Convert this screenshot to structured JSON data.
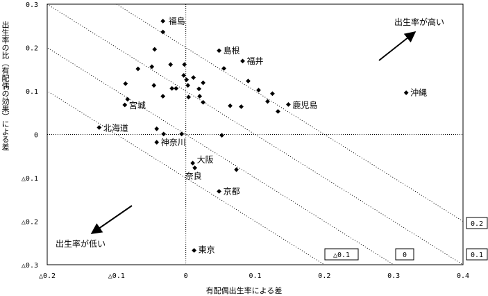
{
  "chart_data": {
    "type": "scatter",
    "xlabel": "有配偶出生率による差",
    "ylabel": "出生率の比（有配偶の効果）による差",
    "xlim": [
      -0.2,
      0.4
    ],
    "ylim": [
      -0.3,
      0.3
    ],
    "x_ticks": [
      {
        "value": -0.2,
        "label": "△0.2"
      },
      {
        "value": -0.1,
        "label": "△0.1"
      },
      {
        "value": 0,
        "label": "0"
      },
      {
        "value": 0.1,
        "label": "0.1"
      },
      {
        "value": 0.2,
        "label": "0.2"
      },
      {
        "value": 0.3,
        "label": "0.3"
      },
      {
        "value": 0.4,
        "label": "0.4"
      }
    ],
    "y_ticks": [
      {
        "value": 0.3,
        "label": "0.3"
      },
      {
        "value": 0.2,
        "label": "0.2"
      },
      {
        "value": 0.1,
        "label": "0.1"
      },
      {
        "value": 0,
        "label": "0"
      },
      {
        "value": -0.1,
        "label": "△0.1"
      },
      {
        "value": -0.2,
        "label": "△0.2"
      },
      {
        "value": -0.3,
        "label": "△0.3"
      }
    ],
    "reference_lines": [
      {
        "sum": 0.2,
        "label": "0.2"
      },
      {
        "sum": 0.1,
        "label": "0.1"
      },
      {
        "sum": 0,
        "label": "0"
      },
      {
        "sum": -0.1,
        "label": "△0.1"
      }
    ],
    "annotations": {
      "high": "出生率が高い",
      "low": "出生率が低い"
    },
    "points": [
      {
        "x": -0.033,
        "y": 0.261,
        "label": "福島"
      },
      {
        "x": -0.033,
        "y": 0.236,
        "label": ""
      },
      {
        "x": -0.045,
        "y": 0.196,
        "label": ""
      },
      {
        "x": 0.048,
        "y": 0.193,
        "label": "島根"
      },
      {
        "x": 0.082,
        "y": 0.169,
        "label": "福井"
      },
      {
        "x": -0.022,
        "y": 0.161,
        "label": ""
      },
      {
        "x": -0.002,
        "y": 0.161,
        "label": ""
      },
      {
        "x": 0.055,
        "y": 0.152,
        "label": ""
      },
      {
        "x": -0.069,
        "y": 0.151,
        "label": ""
      },
      {
        "x": -0.049,
        "y": 0.156,
        "label": ""
      },
      {
        "x": -0.003,
        "y": 0.136,
        "label": ""
      },
      {
        "x": 0.011,
        "y": 0.131,
        "label": ""
      },
      {
        "x": 0.001,
        "y": 0.126,
        "label": ""
      },
      {
        "x": 0.025,
        "y": 0.119,
        "label": ""
      },
      {
        "x": 0.09,
        "y": 0.123,
        "label": ""
      },
      {
        "x": -0.087,
        "y": 0.117,
        "label": ""
      },
      {
        "x": -0.046,
        "y": 0.113,
        "label": ""
      },
      {
        "x": 0.003,
        "y": 0.113,
        "label": ""
      },
      {
        "x": -0.02,
        "y": 0.106,
        "label": ""
      },
      {
        "x": -0.014,
        "y": 0.106,
        "label": ""
      },
      {
        "x": 0.019,
        "y": 0.105,
        "label": ""
      },
      {
        "x": 0.105,
        "y": 0.102,
        "label": ""
      },
      {
        "x": 0.125,
        "y": 0.094,
        "label": ""
      },
      {
        "x": 0.318,
        "y": 0.096,
        "label": "沖縄"
      },
      {
        "x": -0.033,
        "y": 0.088,
        "label": ""
      },
      {
        "x": 0.02,
        "y": 0.088,
        "label": ""
      },
      {
        "x": 0.004,
        "y": 0.086,
        "label": ""
      },
      {
        "x": -0.084,
        "y": 0.081,
        "label": ""
      },
      {
        "x": 0.118,
        "y": 0.076,
        "label": ""
      },
      {
        "x": 0.025,
        "y": 0.074,
        "label": ""
      },
      {
        "x": -0.088,
        "y": 0.068,
        "label": "宮城"
      },
      {
        "x": 0.148,
        "y": 0.069,
        "label": "鹿児島"
      },
      {
        "x": 0.064,
        "y": 0.066,
        "label": ""
      },
      {
        "x": 0.08,
        "y": 0.064,
        "label": ""
      },
      {
        "x": 0.133,
        "y": 0.053,
        "label": ""
      },
      {
        "x": -0.125,
        "y": 0.016,
        "label": "北海道"
      },
      {
        "x": -0.042,
        "y": 0.013,
        "label": ""
      },
      {
        "x": -0.032,
        "y": 0.001,
        "label": ""
      },
      {
        "x": -0.006,
        "y": 0.001,
        "label": ""
      },
      {
        "x": 0.052,
        "y": -0.002,
        "label": ""
      },
      {
        "x": -0.042,
        "y": -0.018,
        "label": "神奈川"
      },
      {
        "x": 0.01,
        "y": -0.066,
        "label": "大阪"
      },
      {
        "x": 0.013,
        "y": -0.077,
        "label": "奈良"
      },
      {
        "x": 0.073,
        "y": -0.081,
        "label": ""
      },
      {
        "x": 0.048,
        "y": -0.131,
        "label": "京都"
      },
      {
        "x": 0.012,
        "y": -0.267,
        "label": "東京"
      }
    ]
  }
}
